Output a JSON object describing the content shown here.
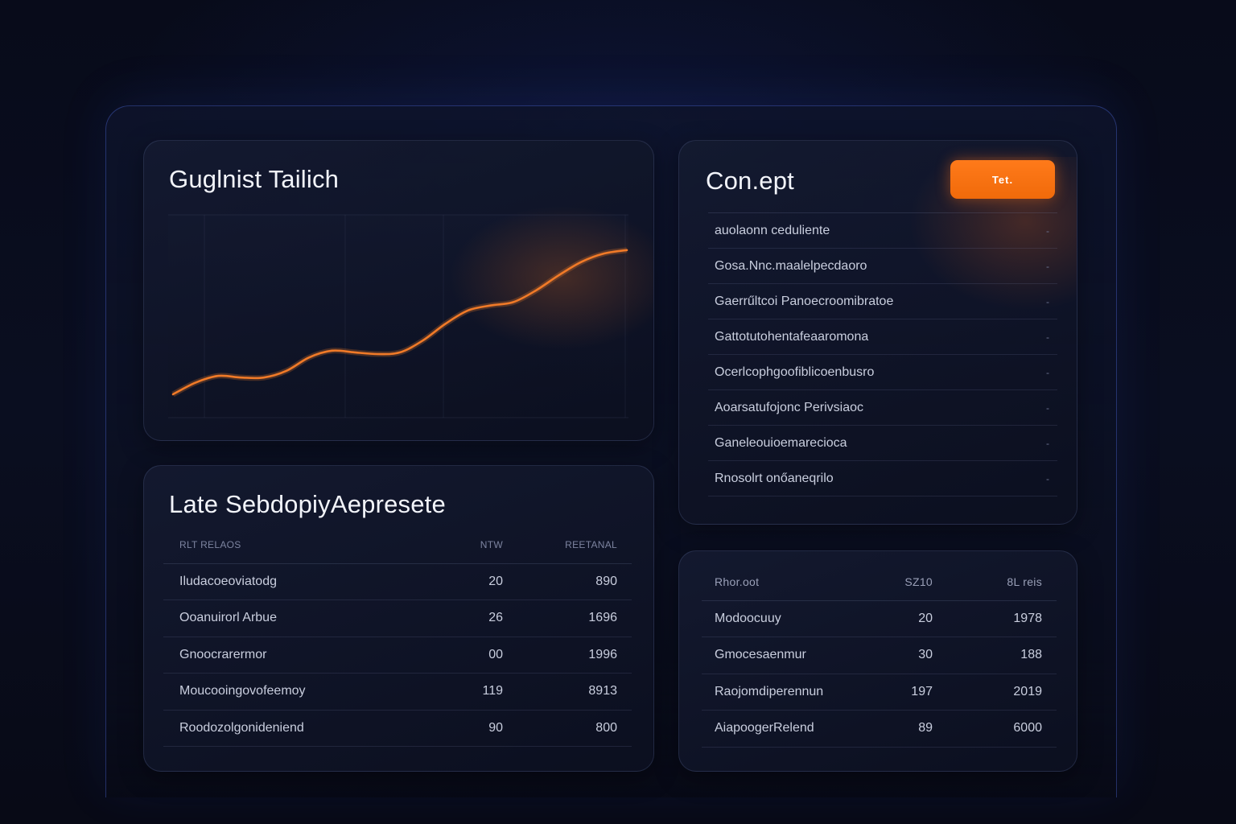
{
  "chart_card": {
    "title": "Guglnist Tailich",
    "chart_data": {
      "type": "line",
      "x": [
        0,
        1,
        2,
        3,
        4,
        5,
        6,
        7,
        8,
        9,
        10,
        11,
        12,
        13,
        14,
        15,
        16,
        17,
        18,
        19,
        20
      ],
      "series": [
        {
          "values": [
            1.2,
            1.9,
            2.3,
            2.2,
            2.2,
            2.6,
            3.4,
            3.8,
            3.7,
            3.6,
            3.7,
            4.4,
            5.4,
            6.2,
            6.5,
            6.7,
            7.4,
            8.3,
            9.1,
            9.6,
            9.8
          ]
        }
      ],
      "ylim": [
        0,
        12
      ],
      "grid": true,
      "line_color": "#f07a28"
    }
  },
  "concept_card": {
    "title": "Con.ept",
    "button_label": "Tet.",
    "items": [
      "auolaonn ceduliente",
      "Gosa.Nnc.maalelpecdaoro",
      "Gaerrűltcoi Panoecroomibratoe",
      "Gattotutohentafeaaromona",
      "Ocerlcophgoofiblicoenbusro",
      "Aoarsatufojonc Perivsiaoc",
      "Ganeleouioemarecioca",
      "Rnosolrt onőaneqrilo"
    ]
  },
  "table_card_1": {
    "title": "Late SebdopiyAepresete",
    "headers": [
      "RLT RELAOS",
      "NTW",
      "REETANAL"
    ],
    "rows": [
      [
        "Iludacoeoviatodg",
        "20",
        "890"
      ],
      [
        "Ooanuirorl Arbue",
        "26",
        "1696"
      ],
      [
        "Gnoocrarermor",
        "00",
        "1996"
      ],
      [
        "Moucooingovofeemoy",
        "119",
        "8913"
      ],
      [
        "Roodozolgonideniend",
        "90",
        "800"
      ]
    ]
  },
  "table_card_2": {
    "headers": [
      "Rhor.oot",
      "SZ10",
      "8L reis"
    ],
    "rows": [
      [
        "Modoocuuy",
        "20",
        "1978"
      ],
      [
        "Gmocesaenmur",
        "30",
        "188"
      ],
      [
        "Raojomdiperennun",
        "197",
        "2019"
      ],
      [
        "AiapoogerRelend",
        "89",
        "6000"
      ]
    ]
  },
  "colors": {
    "background": "#080b18",
    "accent_orange": "#f07a28",
    "frame_border": "#3a50b0"
  }
}
